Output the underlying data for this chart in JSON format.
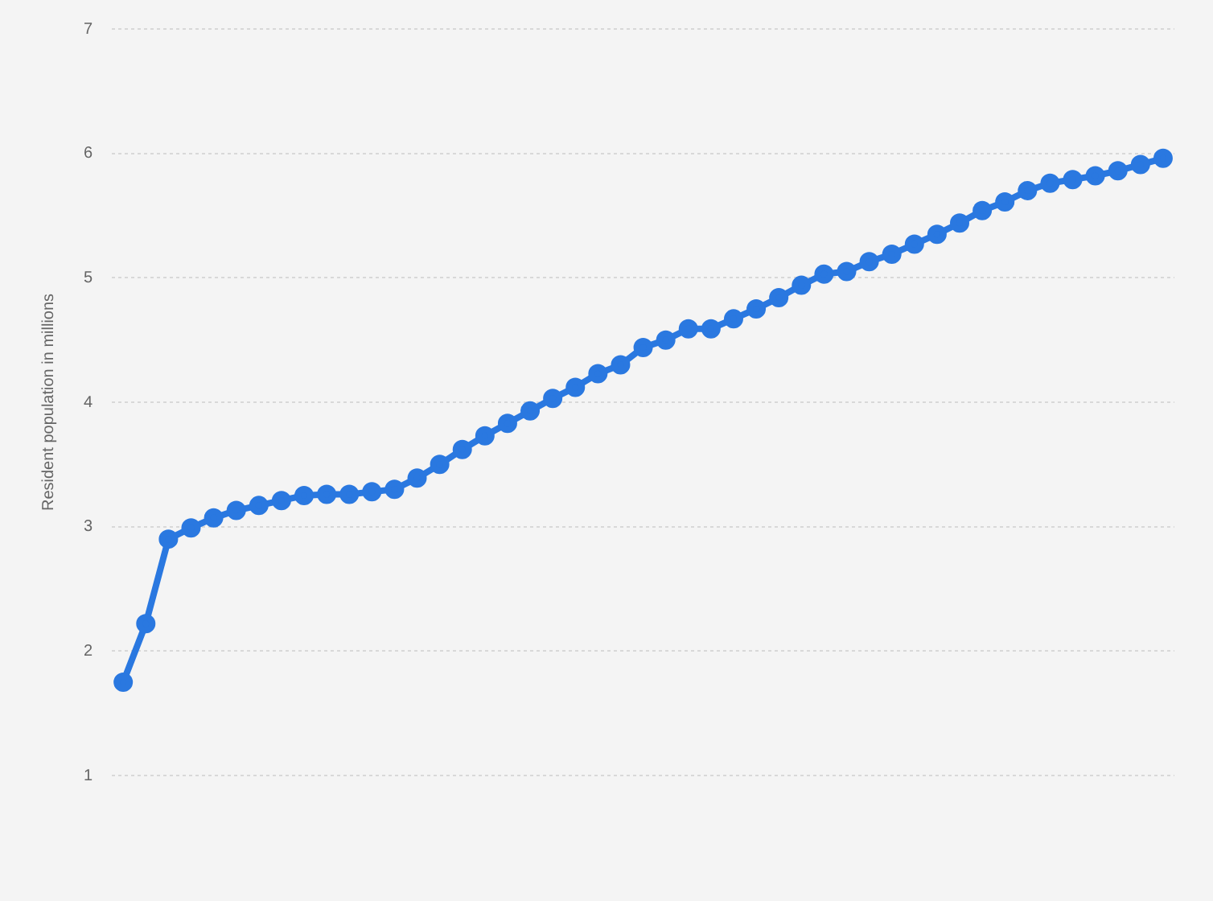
{
  "chart_data": {
    "type": "line",
    "ylabel": "Resident population in millions",
    "categories": [
      null,
      null,
      null,
      null,
      null,
      null,
      null,
      null,
      null,
      null,
      null,
      null,
      null,
      null,
      null,
      null,
      null,
      null,
      null,
      null,
      null,
      null,
      null,
      null,
      null,
      null,
      null,
      null,
      null,
      null,
      null,
      null,
      null,
      null,
      null,
      null,
      null,
      null,
      null,
      null,
      null,
      null,
      null,
      null,
      null,
      null,
      null
    ],
    "series": [
      {
        "color": "#2a78e0",
        "values": [
          1.75,
          2.22,
          2.9,
          2.99,
          3.07,
          3.13,
          3.17,
          3.21,
          3.25,
          3.26,
          3.26,
          3.28,
          3.3,
          3.39,
          3.5,
          3.62,
          3.73,
          3.83,
          3.93,
          4.03,
          4.12,
          4.23,
          4.3,
          4.44,
          4.5,
          4.59,
          4.59,
          4.67,
          4.75,
          4.84,
          4.94,
          5.03,
          5.05,
          5.13,
          5.19,
          5.27,
          5.35,
          5.44,
          5.54,
          5.61,
          5.7,
          5.76,
          5.79,
          5.82,
          5.86,
          5.91,
          5.96
        ]
      }
    ],
    "ylim": [
      1,
      7
    ],
    "yticks": [
      1,
      2,
      3,
      4,
      5,
      6,
      7
    ],
    "grid": "y",
    "marker": "circle",
    "line_style": "solid",
    "tick_labels": "y"
  }
}
